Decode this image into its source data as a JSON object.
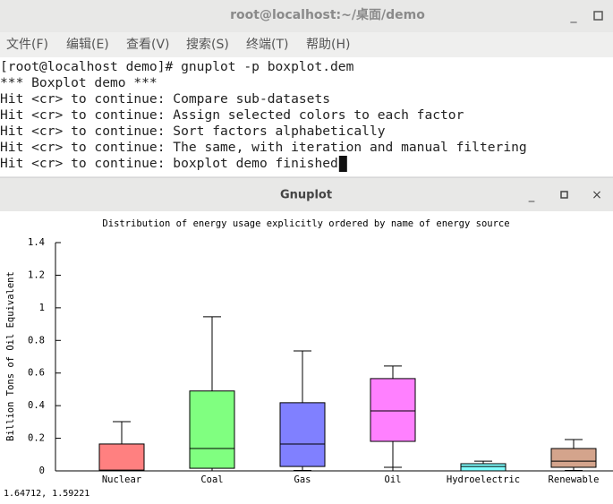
{
  "terminal": {
    "title": "root@localhost:~/桌面/demo",
    "menu": [
      "文件(F)",
      "编辑(E)",
      "查看(V)",
      "搜索(S)",
      "终端(T)",
      "帮助(H)"
    ],
    "lines": [
      "[root@localhost demo]# gnuplot -p boxplot.dem",
      "*** Boxplot demo ***",
      "Hit <cr> to continue: Compare sub-datasets",
      "Hit <cr> to continue: Assign selected colors to each factor",
      "Hit <cr> to continue: Sort factors alphabetically",
      "Hit <cr> to continue: The same, with iteration and manual filtering",
      "Hit <cr> to continue: boxplot demo finished"
    ]
  },
  "gnuplot": {
    "title": "Gnuplot",
    "status": "1.64712,  1.59221",
    "chart": {
      "type": "box",
      "title": "Distribution of energy usage explicitly ordered by name of energy source",
      "y_label": "Billion Tons of Oil Equivalent",
      "categories": [
        "Nuclear",
        "Coal",
        "Gas",
        "Oil",
        "Hydroelectric",
        "Renewable"
      ],
      "whisker_low": [
        0,
        0,
        0.003,
        0.022,
        0,
        0.003
      ],
      "q1": [
        0,
        0.016,
        0.027,
        0.181,
        0,
        0.022
      ],
      "median": [
        0.005,
        0.137,
        0.165,
        0.368,
        0.027,
        0.06
      ],
      "q3": [
        0.165,
        0.49,
        0.418,
        0.566,
        0.044,
        0.137
      ],
      "whisker_high": [
        0.302,
        0.945,
        0.736,
        0.643,
        0.06,
        0.192
      ],
      "colors": [
        "#ff8080",
        "#80ff80",
        "#8080ff",
        "#ff80ff",
        "#80ffff",
        "#d4a48c"
      ],
      "ylim": [
        0,
        1.4
      ],
      "yticks": [
        0,
        0.2,
        0.4,
        0.6,
        0.8,
        1,
        1.2,
        1.4
      ]
    }
  }
}
